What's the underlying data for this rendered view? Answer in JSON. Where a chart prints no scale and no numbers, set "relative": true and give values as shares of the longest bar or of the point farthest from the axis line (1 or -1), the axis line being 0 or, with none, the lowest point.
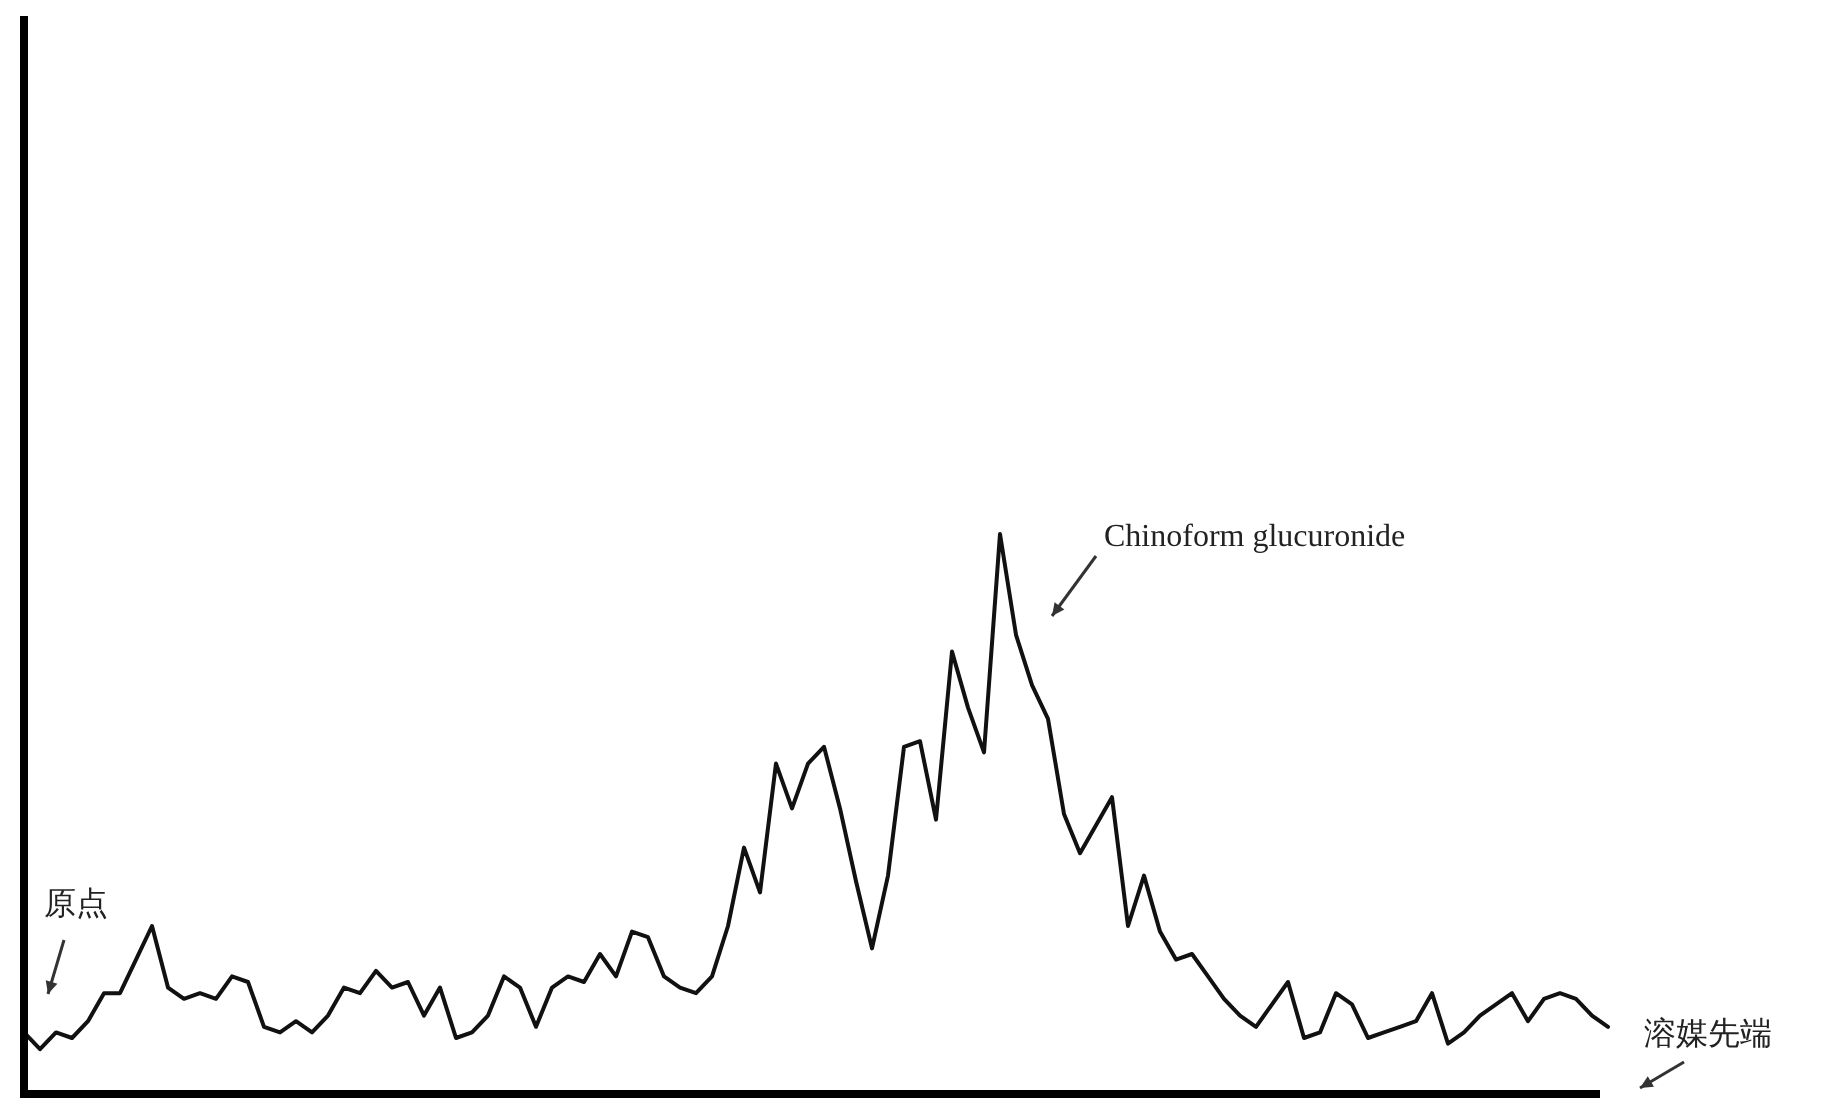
{
  "chart_data": {
    "type": "line",
    "relative": true,
    "color": "#111111",
    "categories": [
      null,
      null,
      null,
      null,
      null,
      null,
      null,
      null,
      null,
      null,
      null,
      null,
      null,
      null,
      null,
      null,
      null,
      null,
      null,
      null,
      null,
      null,
      null,
      null,
      null,
      null,
      null,
      null,
      null,
      null,
      null,
      null,
      null,
      null,
      null,
      null,
      null,
      null,
      null,
      null,
      null,
      null,
      null,
      null,
      null,
      null,
      null,
      null,
      null,
      null,
      null,
      null,
      null,
      null,
      null,
      null,
      null,
      null,
      null,
      null,
      null,
      null,
      null,
      null,
      null,
      null,
      null,
      null,
      null,
      null,
      null,
      null,
      null,
      null,
      null,
      null,
      null,
      null,
      null,
      null,
      null,
      null,
      null,
      null,
      null,
      null,
      null,
      null,
      null,
      null,
      null,
      null,
      null,
      null,
      null,
      null,
      null,
      null,
      null,
      null
    ],
    "values": [
      0.11,
      0.08,
      0.11,
      0.1,
      0.13,
      0.18,
      0.18,
      0.24,
      0.3,
      0.19,
      0.17,
      0.18,
      0.17,
      0.21,
      0.2,
      0.12,
      0.11,
      0.13,
      0.11,
      0.14,
      0.19,
      0.18,
      0.22,
      0.19,
      0.2,
      0.14,
      0.19,
      0.1,
      0.11,
      0.14,
      0.21,
      0.19,
      0.12,
      0.19,
      0.21,
      0.2,
      0.25,
      0.21,
      0.29,
      0.28,
      0.21,
      0.19,
      0.18,
      0.21,
      0.3,
      0.44,
      0.36,
      0.59,
      0.51,
      0.59,
      0.62,
      0.51,
      0.38,
      0.26,
      0.39,
      0.62,
      0.63,
      0.49,
      0.79,
      0.69,
      0.61,
      1,
      0.82,
      0.73,
      0.67,
      0.5,
      0.43,
      0.48,
      0.53,
      0.3,
      0.39,
      0.29,
      0.24,
      0.25,
      0.21,
      0.17,
      0.14,
      0.12,
      0.16,
      0.2,
      0.1,
      0.11,
      0.18,
      0.16,
      0.1,
      0.11,
      0.12,
      0.13,
      0.18,
      0.09,
      0.11,
      0.14,
      0.16,
      0.18,
      0.13,
      0.17,
      0.18,
      0.17,
      0.14,
      0.12
    ],
    "annotations": [
      "原点",
      "Chinoform glucuronide",
      "溶媒先端"
    ]
  }
}
